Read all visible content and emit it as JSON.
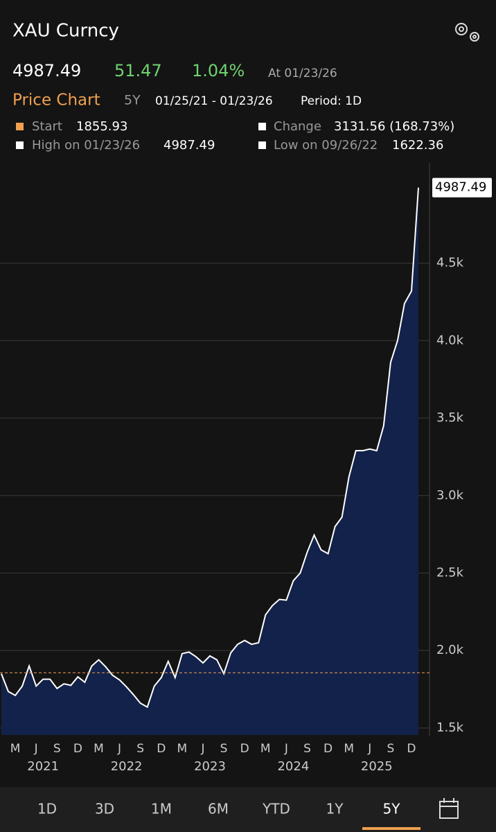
{
  "header": {
    "title": "XAU Curncy",
    "price": "4987.49",
    "change": "51.47",
    "change_pct": "1.04%",
    "as_of": "At 01/23/26"
  },
  "subheader": {
    "label": "Price Chart",
    "range": "5Y",
    "dates": "01/25/21 - 01/23/26",
    "period": "Period: 1D"
  },
  "stats": {
    "start_label": "Start",
    "start": 1855.93,
    "change_label": "Change",
    "change": "3131.56 (168.73%)",
    "high_label": "High on 01/23/26",
    "high": "4987.49",
    "low_label": "Low on 09/26/22",
    "low": "1622.36"
  },
  "chart_data": {
    "type": "area",
    "color": "#ffffff",
    "fill": "#13224a",
    "x": [
      "2021-01",
      "2021-02",
      "2021-03",
      "2021-04",
      "2021-05",
      "2021-06",
      "2021-07",
      "2021-08",
      "2021-09",
      "2021-10",
      "2021-11",
      "2021-12",
      "2022-01",
      "2022-02",
      "2022-03",
      "2022-04",
      "2022-05",
      "2022-06",
      "2022-07",
      "2022-08",
      "2022-09",
      "2022-10",
      "2022-11",
      "2022-12",
      "2023-01",
      "2023-02",
      "2023-03",
      "2023-04",
      "2023-05",
      "2023-06",
      "2023-07",
      "2023-08",
      "2023-09",
      "2023-10",
      "2023-11",
      "2023-12",
      "2024-01",
      "2024-02",
      "2024-03",
      "2024-04",
      "2024-05",
      "2024-06",
      "2024-07",
      "2024-08",
      "2024-09",
      "2024-10",
      "2024-11",
      "2024-12",
      "2025-01",
      "2025-02",
      "2025-03",
      "2025-04",
      "2025-05",
      "2025-06",
      "2025-07",
      "2025-08",
      "2025-09",
      "2025-10",
      "2025-11",
      "2025-12",
      "2026-01"
    ],
    "values": [
      1850,
      1735,
      1710,
      1770,
      1900,
      1770,
      1815,
      1815,
      1755,
      1785,
      1775,
      1830,
      1795,
      1900,
      1940,
      1895,
      1840,
      1810,
      1765,
      1715,
      1660,
      1635,
      1770,
      1825,
      1930,
      1825,
      1980,
      1990,
      1960,
      1920,
      1965,
      1940,
      1850,
      1985,
      2040,
      2065,
      2040,
      2050,
      2230,
      2290,
      2330,
      2325,
      2450,
      2500,
      2635,
      2745,
      2650,
      2625,
      2800,
      2860,
      3120,
      3290,
      3290,
      3300,
      3290,
      3450,
      3860,
      4000,
      4240,
      4320,
      4987.49
    ],
    "ylim": [
      1455,
      5147
    ],
    "yticks": [
      {
        "value": 1500,
        "label": "1.5k"
      },
      {
        "value": 2000,
        "label": "2.0k"
      },
      {
        "value": 2500,
        "label": "2.5k"
      },
      {
        "value": 3000,
        "label": "3.0k"
      },
      {
        "value": 3500,
        "label": "3.5k"
      },
      {
        "value": 4000,
        "label": "4.0k"
      },
      {
        "value": 4500,
        "label": "4.5k"
      }
    ],
    "xticks": [
      {
        "value": "2021-03",
        "label": "M"
      },
      {
        "value": "2021-06",
        "label": "J"
      },
      {
        "value": "2021-09",
        "label": "S"
      },
      {
        "value": "2021-12",
        "label": "D"
      },
      {
        "value": "2022-03",
        "label": "M"
      },
      {
        "value": "2022-06",
        "label": "J"
      },
      {
        "value": "2022-09",
        "label": "S"
      },
      {
        "value": "2022-12",
        "label": "D"
      },
      {
        "value": "2023-03",
        "label": "M"
      },
      {
        "value": "2023-06",
        "label": "J"
      },
      {
        "value": "2023-09",
        "label": "S"
      },
      {
        "value": "2023-12",
        "label": "D"
      },
      {
        "value": "2024-03",
        "label": "M"
      },
      {
        "value": "2024-06",
        "label": "J"
      },
      {
        "value": "2024-09",
        "label": "S"
      },
      {
        "value": "2024-12",
        "label": "D"
      },
      {
        "value": "2025-03",
        "label": "M"
      },
      {
        "value": "2025-06",
        "label": "J"
      },
      {
        "value": "2025-09",
        "label": "S"
      },
      {
        "value": "2025-12",
        "label": "D"
      }
    ],
    "xyears": [
      {
        "value": "2021-07",
        "label": "2021"
      },
      {
        "value": "2022-07",
        "label": "2022"
      },
      {
        "value": "2023-07",
        "label": "2023"
      },
      {
        "value": "2024-07",
        "label": "2024"
      },
      {
        "value": "2025-07",
        "label": "2025"
      }
    ],
    "grid": true
  },
  "tabs": [
    "1D",
    "3D",
    "1M",
    "6M",
    "YTD",
    "1Y",
    "5Y"
  ],
  "selected_tab": 6
}
